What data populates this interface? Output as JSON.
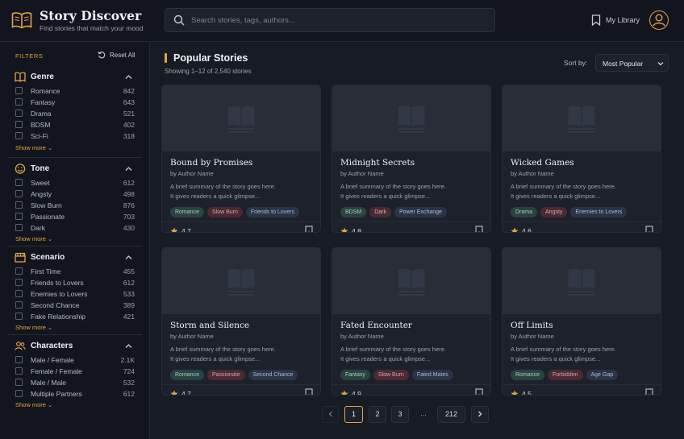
{
  "header": {
    "title": "Story Discover",
    "subtitle": "Find stories that match your mood",
    "search_placeholder": "Search stories, tags, authors...",
    "library_label": "My Library"
  },
  "sidebar": {
    "filters_title": "FILTERS",
    "reset_label": "Reset All",
    "show_more": "Show more",
    "sections": [
      {
        "title": "Genre",
        "icon": "book-icon",
        "options": [
          {
            "label": "Romance",
            "count": "842"
          },
          {
            "label": "Fantasy",
            "count": "643"
          },
          {
            "label": "Drama",
            "count": "521"
          },
          {
            "label": "BDSM",
            "count": "402"
          },
          {
            "label": "Sci-Fi",
            "count": "318"
          }
        ]
      },
      {
        "title": "Tone",
        "icon": "smile-icon",
        "options": [
          {
            "label": "Sweet",
            "count": "612"
          },
          {
            "label": "Angsty",
            "count": "498"
          },
          {
            "label": "Slow Burn",
            "count": "876"
          },
          {
            "label": "Passionate",
            "count": "703"
          },
          {
            "label": "Dark",
            "count": "430"
          }
        ]
      },
      {
        "title": "Scenario",
        "icon": "clapperboard-icon",
        "options": [
          {
            "label": "First Time",
            "count": "455"
          },
          {
            "label": "Friends to Lovers",
            "count": "612"
          },
          {
            "label": "Enemies to Lovers",
            "count": "533"
          },
          {
            "label": "Second Chance",
            "count": "389"
          },
          {
            "label": "Fake Relationship",
            "count": "421"
          }
        ]
      },
      {
        "title": "Characters",
        "icon": "users-icon",
        "options": [
          {
            "label": "Male / Female",
            "count": "2.1K"
          },
          {
            "label": "Female / Female",
            "count": "724"
          },
          {
            "label": "Male / Male",
            "count": "532"
          },
          {
            "label": "Multiple Partners",
            "count": "612"
          }
        ]
      }
    ]
  },
  "main": {
    "title": "Popular Stories",
    "results_text": "Showing 1–12 of 2,540 stories",
    "sort_label": "Sort by:",
    "sort_value": "Most Popular",
    "cards": [
      {
        "title": "Bound by Promises",
        "author": "by Author Name",
        "desc1": "A brief summary of the story goes here.",
        "desc2": "It gives readers a quick glimpse...",
        "tags": [
          {
            "label": "Romance",
            "color": "green"
          },
          {
            "label": "Slow Burn",
            "color": "red"
          },
          {
            "label": "Friends to Lovers",
            "color": "blue"
          }
        ],
        "rating": "4.7"
      },
      {
        "title": "Midnight Secrets",
        "author": "by Author Name",
        "desc1": "A brief summary of the story goes here.",
        "desc2": "It gives readers a quick glimpse...",
        "tags": [
          {
            "label": "BDSM",
            "color": "green"
          },
          {
            "label": "Dark",
            "color": "red"
          },
          {
            "label": "Power Exchange",
            "color": "blue"
          }
        ],
        "rating": "4.8"
      },
      {
        "title": "Wicked Games",
        "author": "by Author Name",
        "desc1": "A brief summary of the story goes here.",
        "desc2": "It gives readers a quick glimpse...",
        "tags": [
          {
            "label": "Drama",
            "color": "green"
          },
          {
            "label": "Angsty",
            "color": "red"
          },
          {
            "label": "Enemies to Lovers",
            "color": "blue"
          }
        ],
        "rating": "4.6"
      },
      {
        "title": "Storm and Silence",
        "author": "by Author Name",
        "desc1": "A brief summary of the story goes here.",
        "desc2": "It gives readers a quick glimpse...",
        "tags": [
          {
            "label": "Romance",
            "color": "green"
          },
          {
            "label": "Passionate",
            "color": "red"
          },
          {
            "label": "Second Chance",
            "color": "blue"
          }
        ],
        "rating": "4.7"
      },
      {
        "title": "Fated Encounter",
        "author": "by Author Name",
        "desc1": "A brief summary of the story goes here.",
        "desc2": "It gives readers a quick glimpse...",
        "tags": [
          {
            "label": "Fantasy",
            "color": "green"
          },
          {
            "label": "Slow Burn",
            "color": "red"
          },
          {
            "label": "Fated Mates",
            "color": "blue"
          }
        ],
        "rating": "4.9"
      },
      {
        "title": "Off Limits",
        "author": "by Author Name",
        "desc1": "A brief summary of the story goes here.",
        "desc2": "It gives readers a quick glimpse...",
        "tags": [
          {
            "label": "Romance",
            "color": "green"
          },
          {
            "label": "Forbidden",
            "color": "red"
          },
          {
            "label": "Age Gap",
            "color": "blue"
          }
        ],
        "rating": "4.5"
      }
    ]
  },
  "pagination": {
    "prev_icon": "chevron-left-icon",
    "pages": [
      "1",
      "2",
      "3"
    ],
    "ellipsis": "...",
    "last": "212",
    "next_icon": "chevron-right-icon"
  },
  "colors": {
    "accent": "#e3a34a",
    "background": "#171b24",
    "panel": "#12151d",
    "card": "#1d212b"
  }
}
